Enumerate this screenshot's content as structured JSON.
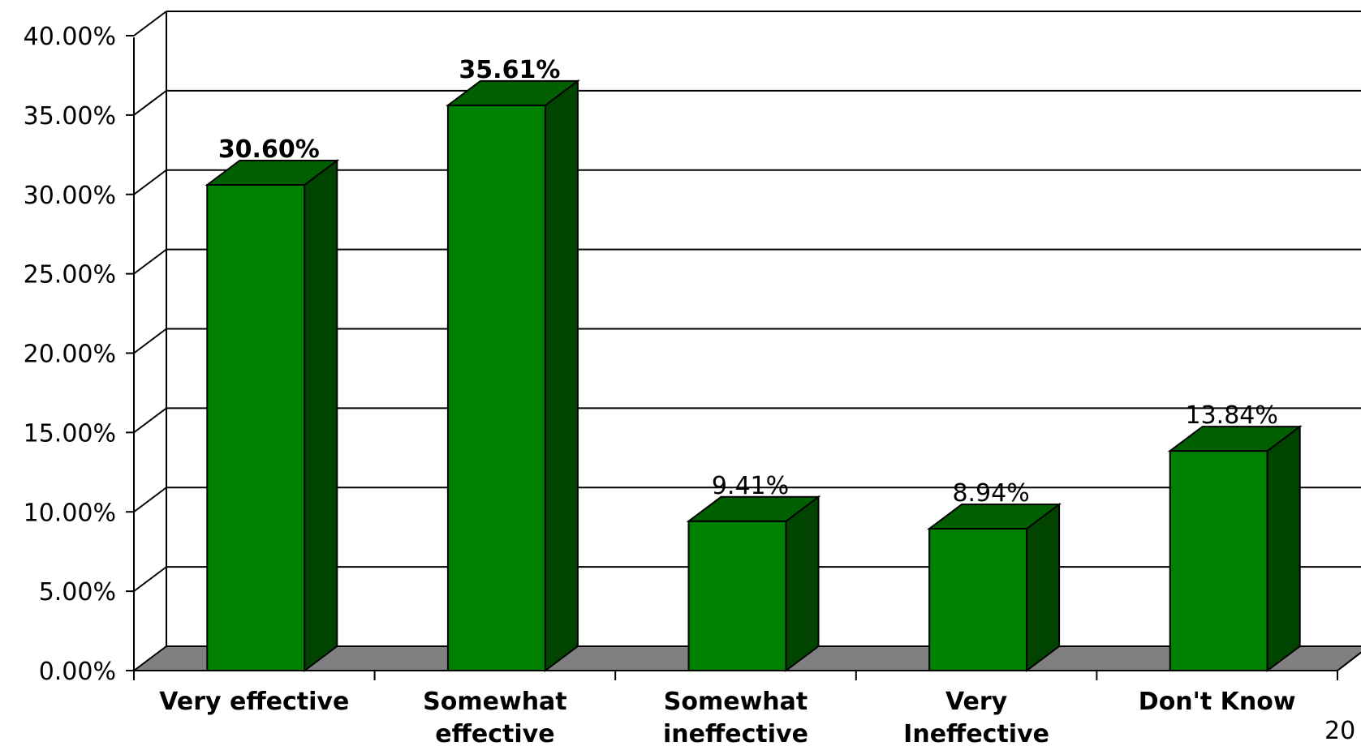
{
  "chart_data": {
    "type": "bar",
    "style": "3d-column",
    "categories": [
      [
        "Very effective"
      ],
      [
        "Somewhat",
        "effective"
      ],
      [
        "Somewhat",
        "ineffective"
      ],
      [
        "Very",
        "Ineffective"
      ],
      [
        "Don't Know"
      ]
    ],
    "values": [
      30.6,
      35.61,
      9.41,
      8.94,
      13.84
    ],
    "data_labels": [
      "30.60%",
      "35.61%",
      "9.41%",
      "8.94%",
      "13.84%"
    ],
    "data_label_bold": [
      true,
      true,
      false,
      false,
      false
    ],
    "y_ticks": [
      0,
      5,
      10,
      15,
      20,
      25,
      30,
      35,
      40
    ],
    "y_tick_labels": [
      "0.00%",
      "5.00%",
      "10.00%",
      "15.00%",
      "20.00%",
      "25.00%",
      "30.00%",
      "35.00%",
      "40.00%"
    ],
    "ylim": [
      0,
      40
    ],
    "grid": true,
    "legend": false,
    "title": "",
    "xlabel": "",
    "ylabel": "",
    "colors": {
      "bar_front": "#008000",
      "bar_top": "#006000",
      "bar_side": "#004400",
      "floor": "#808080",
      "grid": "#000000"
    }
  },
  "page_number": "20"
}
